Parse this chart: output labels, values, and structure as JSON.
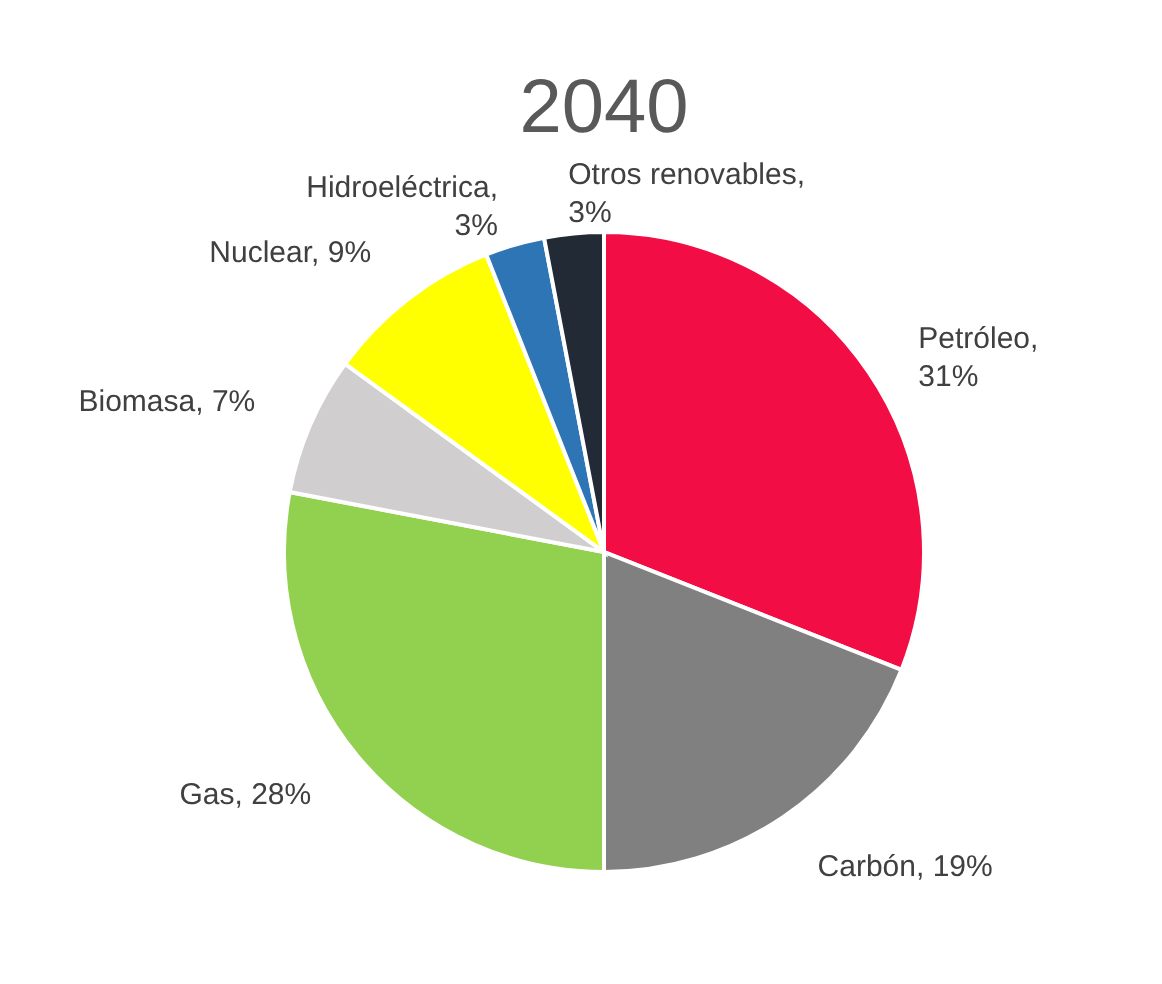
{
  "chart_data": {
    "type": "pie",
    "title": "2040",
    "categories": [
      "Petróleo",
      "Carbón",
      "Gas",
      "Biomasa",
      "Nuclear",
      "Hidroeléctrica",
      "Otros renovables"
    ],
    "values": [
      31,
      19,
      28,
      7,
      9,
      3,
      3
    ],
    "colors": [
      "#f20d44",
      "#808080",
      "#92d050",
      "#d0cece",
      "#ffff00",
      "#2e75b6",
      "#222a35"
    ],
    "value_labels": [
      ", 31%",
      ", 19%",
      ", 28%",
      ", 7%",
      ", 9%",
      ", 3%",
      ", 3%"
    ],
    "legend": false
  }
}
